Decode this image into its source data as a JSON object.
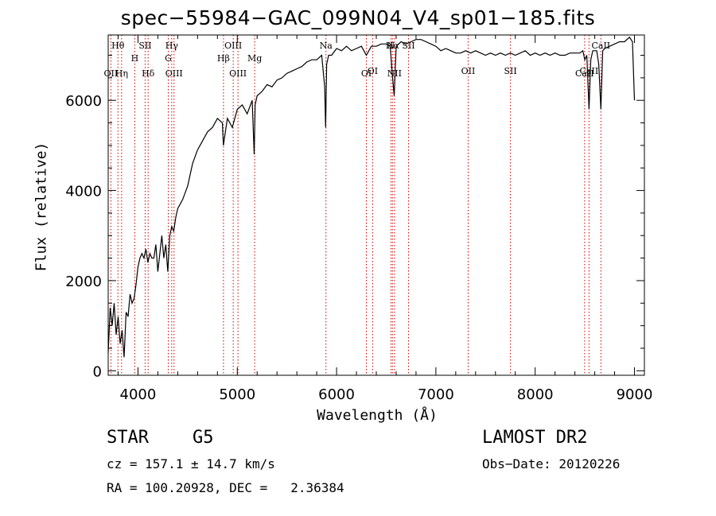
{
  "title": "spec−55984−GAC_099N04_V4_sp01−185.fits",
  "info": {
    "class_type": "STAR",
    "subclass": "G5",
    "survey": "LAMOST DR2",
    "cz": "cz = 157.1 ± 14.7 km/s",
    "obs_date": "Obs−Date: 20120226",
    "coords": "RA = 100.20928, DEC =   2.36384"
  },
  "colors": {
    "line_marker": "#cc0000",
    "spectrum": "#000000",
    "axes": "#000000"
  },
  "chart_data": {
    "type": "line",
    "title": "spec−55984−GAC_099N04_V4_sp01−185.fits",
    "xlabel": "Wavelength (Å)",
    "ylabel": "Flux (relative)",
    "xlim": [
      3700,
      9100
    ],
    "ylim": [
      -100,
      7450
    ],
    "xticks": [
      4000,
      5000,
      6000,
      7000,
      8000,
      9000
    ],
    "xtick_labels": [
      "4000",
      "5000",
      "6000",
      "7000",
      "8000",
      "9000"
    ],
    "yticks": [
      0,
      2000,
      4000,
      6000
    ],
    "ytick_labels": [
      "0",
      "2000",
      "4000",
      "6000"
    ],
    "series": [
      {
        "name": "flux",
        "x": [
          3700,
          3720,
          3740,
          3760,
          3780,
          3800,
          3820,
          3840,
          3860,
          3880,
          3900,
          3920,
          3940,
          3960,
          3980,
          4000,
          4020,
          4040,
          4060,
          4080,
          4100,
          4120,
          4140,
          4160,
          4180,
          4200,
          4220,
          4240,
          4260,
          4280,
          4300,
          4320,
          4340,
          4360,
          4380,
          4400,
          4450,
          4500,
          4550,
          4600,
          4650,
          4700,
          4750,
          4800,
          4850,
          4860,
          4900,
          4950,
          5000,
          5050,
          5100,
          5150,
          5170,
          5180,
          5200,
          5250,
          5300,
          5350,
          5400,
          5450,
          5500,
          5550,
          5600,
          5650,
          5700,
          5750,
          5800,
          5850,
          5880,
          5890,
          5900,
          5920,
          5950,
          6000,
          6050,
          6100,
          6150,
          6200,
          6250,
          6300,
          6350,
          6400,
          6450,
          6500,
          6540,
          6560,
          6580,
          6600,
          6650,
          6700,
          6750,
          6800,
          6850,
          6900,
          6950,
          7000,
          7050,
          7100,
          7150,
          7200,
          7250,
          7300,
          7350,
          7400,
          7450,
          7500,
          7550,
          7600,
          7650,
          7700,
          7750,
          7800,
          7850,
          7900,
          7950,
          8000,
          8050,
          8100,
          8150,
          8200,
          8250,
          8300,
          8350,
          8400,
          8450,
          8480,
          8500,
          8520,
          8542,
          8560,
          8580,
          8600,
          8620,
          8640,
          8662,
          8680,
          8700,
          8750,
          8800,
          8850,
          8900,
          8950,
          8980,
          9000
        ],
        "values": [
          400,
          1400,
          1000,
          1500,
          800,
          1200,
          600,
          900,
          300,
          1300,
          1200,
          1700,
          1500,
          1600,
          1900,
          2300,
          2500,
          2600,
          2500,
          2700,
          2400,
          2600,
          2500,
          2500,
          2800,
          2200,
          2600,
          3000,
          2500,
          2800,
          2200,
          3000,
          3200,
          3100,
          3400,
          3600,
          3800,
          4100,
          4600,
          4900,
          5100,
          5300,
          5400,
          5600,
          5500,
          5000,
          5600,
          5400,
          5800,
          5900,
          5700,
          6000,
          4800,
          5900,
          6100,
          6200,
          6350,
          6300,
          6450,
          6500,
          6600,
          6650,
          6700,
          6750,
          6850,
          6900,
          6900,
          7000,
          6300,
          5400,
          6800,
          7000,
          7000,
          7150,
          7100,
          7200,
          7100,
          7150,
          7200,
          7000,
          7200,
          7200,
          7250,
          7250,
          7200,
          6600,
          6100,
          7200,
          7300,
          7250,
          7300,
          7350,
          7350,
          7300,
          7250,
          7200,
          7100,
          7150,
          7100,
          7050,
          7050,
          7100,
          7050,
          7100,
          7050,
          7000,
          7050,
          7000,
          7050,
          7000,
          7050,
          7000,
          7050,
          7100,
          7000,
          7050,
          7000,
          7050,
          7000,
          7050,
          7000,
          7000,
          7050,
          7050,
          7050,
          7100,
          6900,
          7000,
          5800,
          6900,
          7100,
          7100,
          7100,
          6800,
          5800,
          7100,
          7150,
          7200,
          7250,
          7300,
          7300,
          7400,
          7300,
          6000
        ]
      }
    ],
    "line_markers": [
      {
        "label": "Hθ",
        "wavelength": 3798,
        "row": 0
      },
      {
        "label": "OII",
        "wavelength": 3727,
        "row": 3
      },
      {
        "label": "Hη",
        "wavelength": 3835,
        "row": 3
      },
      {
        "label": "H",
        "wavelength": 3968,
        "row": 1
      },
      {
        "label": "SII",
        "wavelength": 4072,
        "row": 0
      },
      {
        "label": "Hδ",
        "wavelength": 4102,
        "row": 3
      },
      {
        "label": "Hγ",
        "wavelength": 4340,
        "row": 0
      },
      {
        "label": "G",
        "wavelength": 4305,
        "row": 1
      },
      {
        "label": "OIII",
        "wavelength": 4363,
        "row": 3
      },
      {
        "label": "OIII",
        "wavelength": 4959,
        "row": 0
      },
      {
        "label": "Hβ",
        "wavelength": 4861,
        "row": 1
      },
      {
        "label": "Mg",
        "wavelength": 5175,
        "row": 1
      },
      {
        "label": "OIII",
        "wavelength": 5007,
        "row": 3
      },
      {
        "label": "Na",
        "wavelength": 5893,
        "row": 0
      },
      {
        "label": "OI",
        "wavelength": 6300,
        "row": 3
      },
      {
        "label": "OI",
        "wavelength": 6363,
        "row": 2
      },
      {
        "label": "N",
        "wavelength": 6548,
        "row": 0
      },
      {
        "label": "Hα",
        "wavelength": 6563,
        "row": 0
      },
      {
        "label": "NII",
        "wavelength": 6583,
        "row": 3
      },
      {
        "label": "SII",
        "wavelength": 6724,
        "row": 0
      },
      {
        "label": "OII",
        "wavelength": 7325,
        "row": 2
      },
      {
        "label": "SII",
        "wavelength": 7751,
        "row": 2
      },
      {
        "label": "CaII",
        "wavelength": 8498,
        "row": 3
      },
      {
        "label": "CaII",
        "wavelength": 8542,
        "row": 2
      },
      {
        "label": "CaII",
        "wavelength": 8662,
        "row": 0
      }
    ]
  }
}
